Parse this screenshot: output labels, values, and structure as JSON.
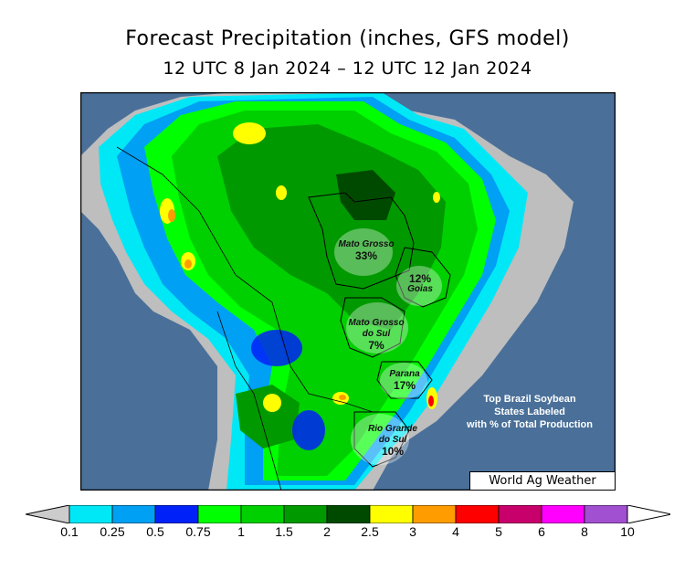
{
  "header": {
    "title": "Forecast Precipitation (inches, GFS model)",
    "subtitle": "12 UTC 8 Jan 2024 – 12 UTC 12 Jan 2024"
  },
  "regions": [
    {
      "name": "Mato Grosso",
      "pct": "33%"
    },
    {
      "name": "Goias",
      "pct": "12%"
    },
    {
      "name": "Mato Grosso do Sul",
      "name_line1": "Mato Grosso",
      "name_line2": "do Sul",
      "pct": "7%"
    },
    {
      "name": "Parana",
      "pct": "17%"
    },
    {
      "name": "Rio Grande do Sul",
      "name_line1": "Rio Grande",
      "name_line2": "do Sul",
      "pct": "10%"
    }
  ],
  "note": {
    "line1": "Top Brazil Soybean",
    "line2": "States Labeled",
    "line3": "with % of Total Production"
  },
  "credit": "World Ag Weather",
  "legend": {
    "ticks": [
      "0.1",
      "0.25",
      "0.5",
      "0.75",
      "1",
      "1.5",
      "2",
      "2.5",
      "3",
      "4",
      "5",
      "6",
      "8",
      "10"
    ],
    "colors": [
      "#00e8f6",
      "#00a0f4",
      "#0022f8",
      "#00ff00",
      "#00d000",
      "#009a00",
      "#004a00",
      "#ffff00",
      "#ff9c00",
      "#ff0000",
      "#c8006c",
      "#ff00ff",
      "#a050d0"
    ],
    "under_color": "#cccccc",
    "over_color": "#ffffff"
  },
  "map_colors": {
    "ocean": "#4a7099",
    "land_dry": "#bebebe"
  }
}
